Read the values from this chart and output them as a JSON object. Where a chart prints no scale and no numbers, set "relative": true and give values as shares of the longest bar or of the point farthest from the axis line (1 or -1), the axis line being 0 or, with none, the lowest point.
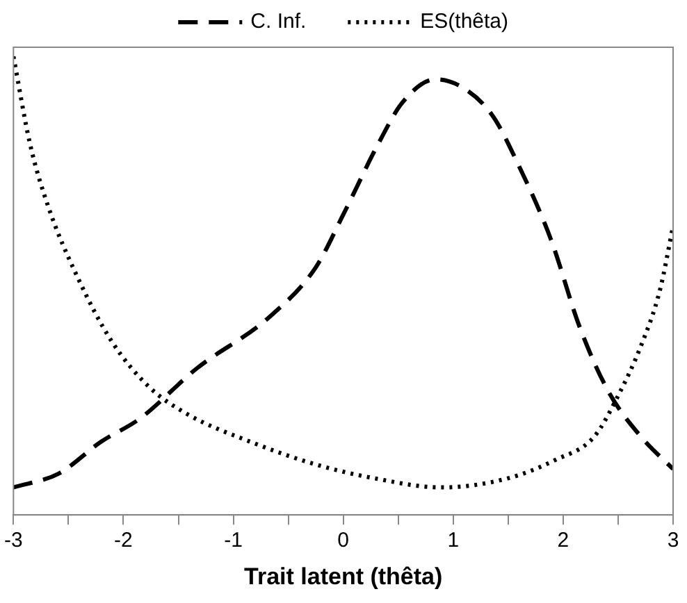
{
  "chart_data": {
    "type": "line",
    "xlabel": "Trait latent (thêta)",
    "relative": true,
    "legend": "top",
    "marker": "none",
    "grid": false,
    "xlim": [
      -3,
      3
    ],
    "xticks": [
      -3,
      {
        "value": -2.5,
        "label": null
      },
      -2,
      {
        "value": -1.5,
        "label": null
      },
      -1,
      {
        "value": -0.5,
        "label": null
      },
      0,
      {
        "value": 0.5,
        "label": null
      },
      1,
      {
        "value": 1.5,
        "label": null
      },
      2,
      {
        "value": 2.5,
        "label": null
      },
      3
    ],
    "series": [
      {
        "name": "C. Inf.",
        "color": "#000000",
        "line_style": "dashed",
        "x": [
          -3,
          -2.59,
          -2.2,
          -1.85,
          -1.33,
          -0.68,
          -0.25,
          0.01,
          0.32,
          0.54,
          0.84,
          1.1,
          1.36,
          1.58,
          1.89,
          2.15,
          2.41,
          2.71,
          3
        ],
        "values": [
          0.06,
          0.09,
          0.16,
          0.21,
          0.32,
          0.43,
          0.54,
          0.66,
          0.81,
          0.9,
          0.95,
          0.93,
          0.87,
          0.77,
          0.6,
          0.41,
          0.27,
          0.17,
          0.1
        ]
      },
      {
        "name": "ES(thêta)",
        "color": "#000000",
        "line_style": "dotted",
        "x": [
          -3,
          -2.85,
          -2.68,
          -2.42,
          -2.11,
          -1.77,
          -1.42,
          -0.85,
          -0.25,
          0.28,
          0.89,
          1.5,
          1.93,
          2.28,
          2.5,
          2.71,
          2.88,
          3
        ],
        "values": [
          1,
          0.81,
          0.67,
          0.52,
          0.38,
          0.28,
          0.22,
          0.16,
          0.11,
          0.08,
          0.06,
          0.08,
          0.12,
          0.17,
          0.26,
          0.37,
          0.49,
          0.63
        ]
      }
    ]
  }
}
